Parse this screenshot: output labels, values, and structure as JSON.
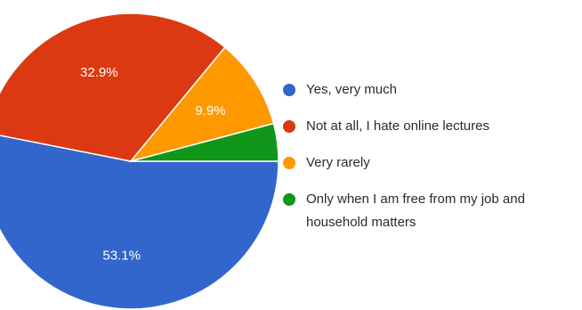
{
  "chart_data": {
    "type": "pie",
    "slices": [
      {
        "label": "Yes, very much",
        "value": 53.1,
        "value_label": "53.1%",
        "color": "#3366cc"
      },
      {
        "label": "Not at all, I hate online lectures",
        "value": 32.9,
        "value_label": "32.9%",
        "color": "#dc3912"
      },
      {
        "label": "Very rarely",
        "value": 9.9,
        "value_label": "9.9%",
        "color": "#ff9900"
      },
      {
        "label": "Only when I am free from my job and household matters",
        "value": 4.1,
        "value_label": "",
        "color": "#109618"
      }
    ],
    "legend_position": "right",
    "start": "3 o'clock, clockwise"
  }
}
